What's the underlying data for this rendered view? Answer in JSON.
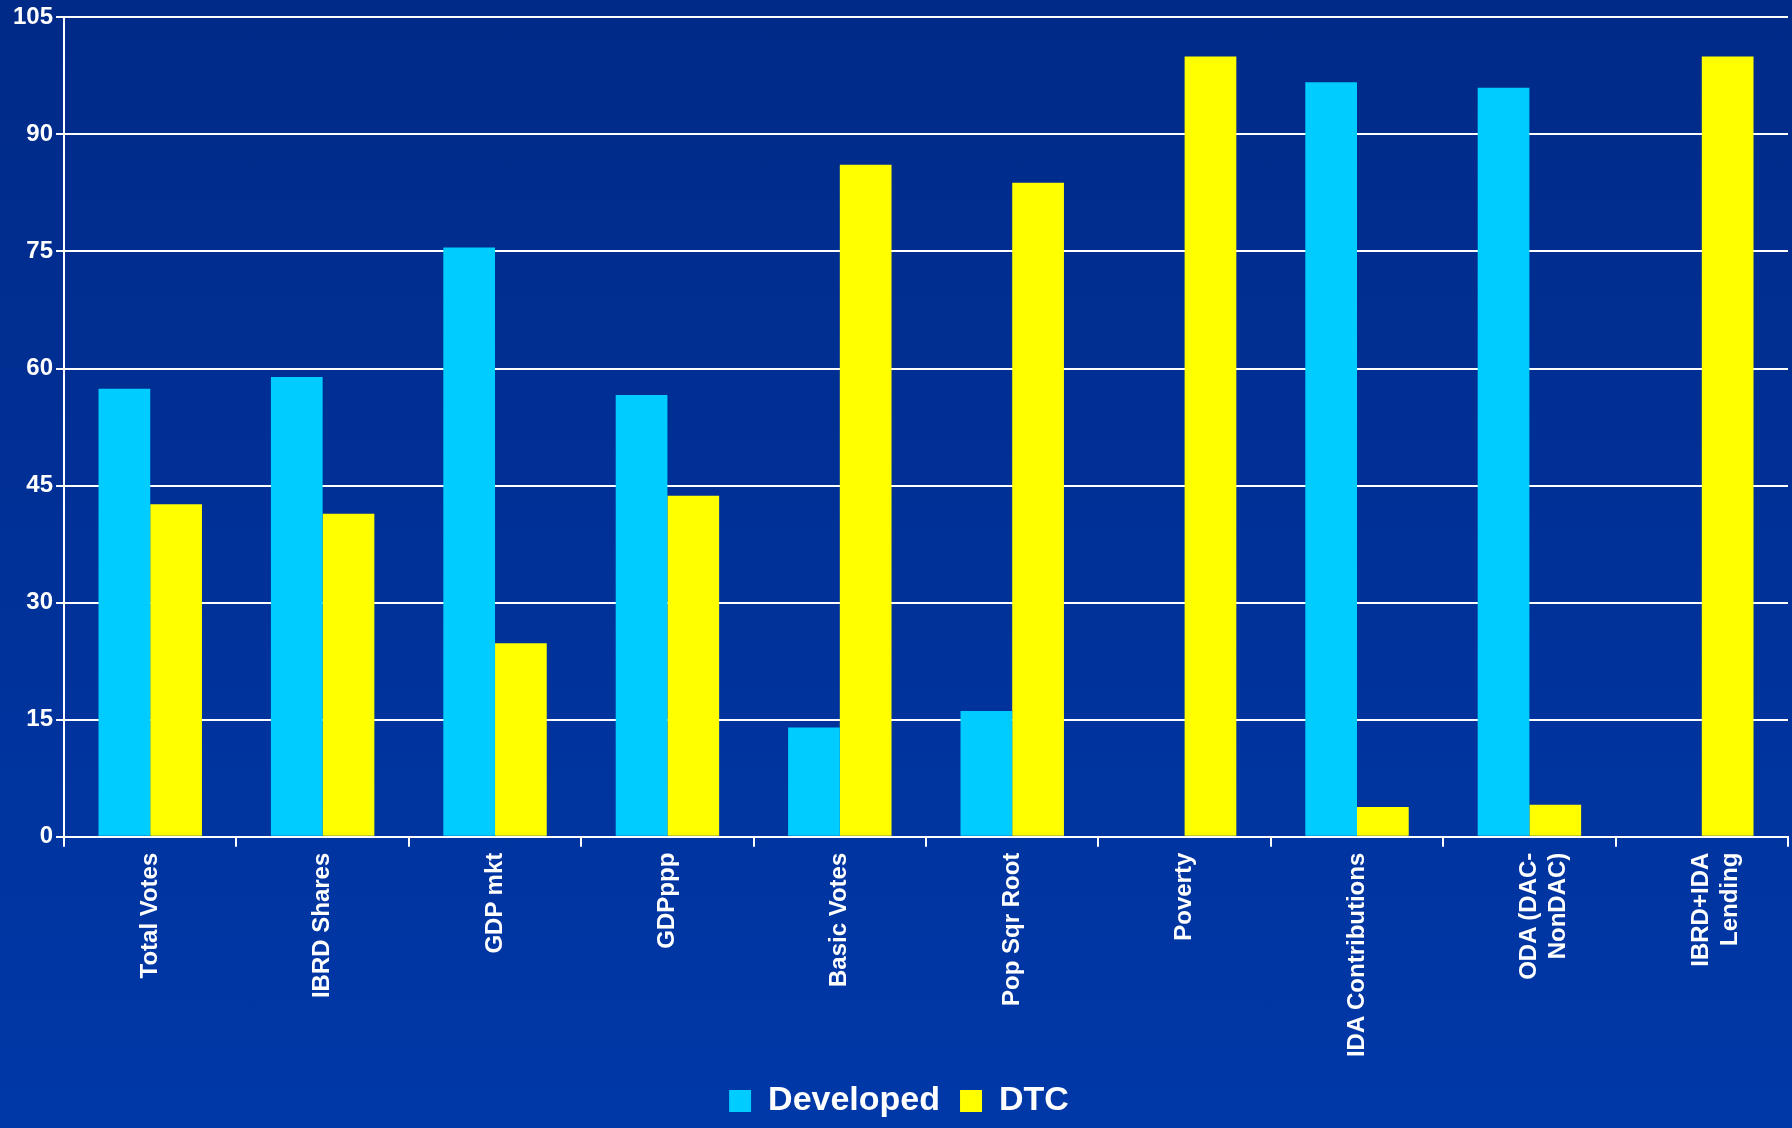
{
  "chart_data": {
    "type": "bar",
    "categories": [
      "Total Votes",
      "IBRD Shares",
      "GDP mkt",
      "GDPppp",
      "Basic Votes",
      "Pop Sqr Root",
      "Poverty",
      "IDA Contributions",
      "ODA (DAC-\nNonDAC)",
      "IBRD+IDA\nLending"
    ],
    "series": [
      {
        "name": "Developed",
        "color": "#00ccff",
        "values": [
          57.4,
          58.9,
          75.5,
          56.6,
          14.0,
          16.1,
          0,
          96.7,
          96.0,
          0
        ]
      },
      {
        "name": "DTC",
        "color": "#ffff00",
        "values": [
          42.6,
          41.4,
          24.8,
          43.7,
          86.1,
          83.8,
          100,
          3.8,
          4.1,
          100
        ]
      }
    ],
    "ylim": [
      0,
      105
    ],
    "yticks": [
      0,
      15,
      30,
      45,
      60,
      75,
      90,
      105
    ],
    "grid": "y",
    "legend": "bottom"
  }
}
